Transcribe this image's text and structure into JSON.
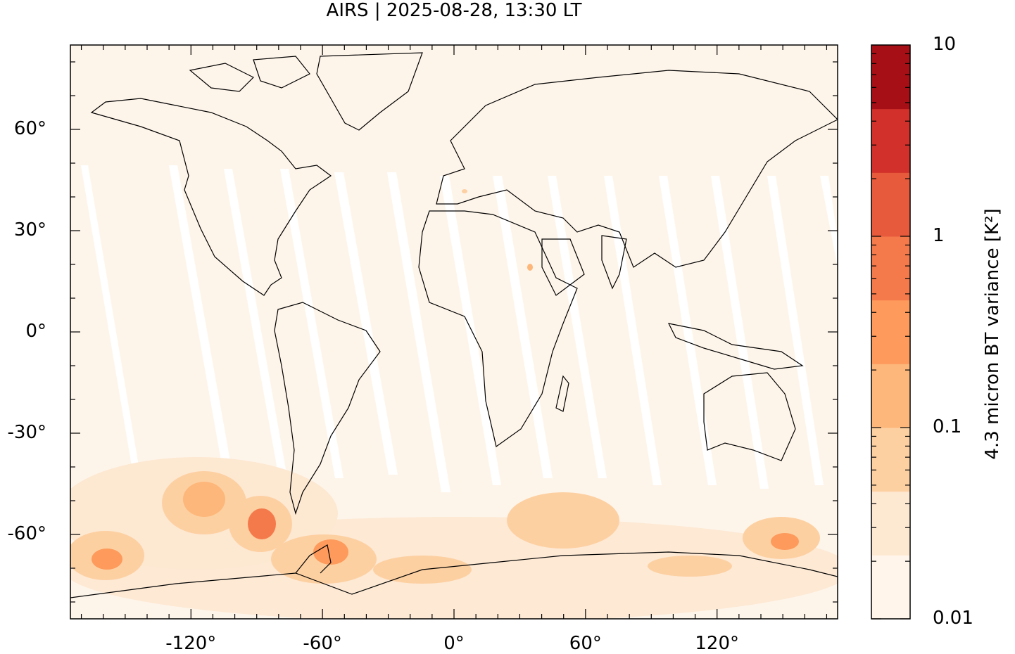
{
  "title": "AIRS | 2025-08-28, 13:30 LT",
  "map": {
    "lon_range": [
      -175,
      175
    ],
    "lat_range": [
      -85,
      85
    ],
    "y_ticks": [
      {
        "value": 60,
        "label": "60°"
      },
      {
        "value": 30,
        "label": "30°"
      },
      {
        "value": 0,
        "label": "0°"
      },
      {
        "value": -30,
        "label": "-30°"
      },
      {
        "value": -60,
        "label": "-60°"
      }
    ],
    "x_ticks": [
      {
        "value": -120,
        "label": "-120°"
      },
      {
        "value": -60,
        "label": "-60°"
      },
      {
        "value": 0,
        "label": "0°"
      },
      {
        "value": 60,
        "label": "60°"
      },
      {
        "value": 120,
        "label": "120°"
      }
    ],
    "background_color": "#fef5ea"
  },
  "colorbar": {
    "title": "4.3 micron BT variance [K²]",
    "scale": "log",
    "range": [
      0.01,
      10
    ],
    "labels": [
      {
        "value": 10,
        "label": "10"
      },
      {
        "value": 1,
        "label": "1"
      },
      {
        "value": 0.1,
        "label": "0.1"
      },
      {
        "value": 0.01,
        "label": "0.01"
      }
    ],
    "colors": [
      "#fff5eb",
      "#fde8d2",
      "#fdd0a2",
      "#fdb77a",
      "#fd9a5c",
      "#f57a4b",
      "#e85a3c",
      "#d1312a",
      "#a50f15"
    ]
  }
}
